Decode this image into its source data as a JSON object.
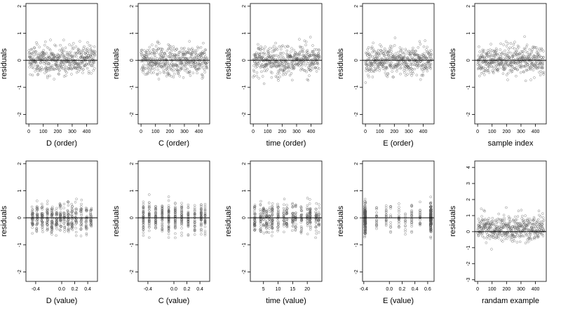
{
  "chart_data": [
    {
      "type": "scatter",
      "xlabel": "D (order)",
      "ylabel": "residuals",
      "xticks": [
        0,
        100,
        200,
        300,
        400
      ],
      "yticks": [
        -2,
        -1,
        0,
        1,
        2
      ],
      "xlim": [
        -20,
        475
      ],
      "ylim": [
        -2.35,
        2.1
      ],
      "ref_line_y": 0,
      "point_pattern": "order",
      "n_points": 460,
      "grid": false
    },
    {
      "type": "scatter",
      "xlabel": "C (order)",
      "ylabel": "residuals",
      "xticks": [
        0,
        100,
        200,
        300,
        400
      ],
      "yticks": [
        -2,
        -1,
        0,
        1,
        2
      ],
      "xlim": [
        -20,
        475
      ],
      "ylim": [
        -2.35,
        2.1
      ],
      "ref_line_y": 0,
      "point_pattern": "order",
      "n_points": 460,
      "grid": false
    },
    {
      "type": "scatter",
      "xlabel": "time (order)",
      "ylabel": "residuals",
      "xticks": [
        0,
        100,
        200,
        300,
        400
      ],
      "yticks": [
        -2,
        -1,
        0,
        1,
        2
      ],
      "xlim": [
        -20,
        475
      ],
      "ylim": [
        -2.35,
        2.1
      ],
      "ref_line_y": 0,
      "point_pattern": "order",
      "n_points": 460,
      "grid": false
    },
    {
      "type": "scatter",
      "xlabel": "E (order)",
      "ylabel": "residuals",
      "xticks": [
        0,
        100,
        200,
        300,
        400
      ],
      "yticks": [
        -2,
        -1,
        0,
        1,
        2
      ],
      "xlim": [
        -20,
        475
      ],
      "ylim": [
        -2.35,
        2.1
      ],
      "ref_line_y": 0,
      "point_pattern": "order",
      "n_points": 460,
      "grid": false
    },
    {
      "type": "scatter",
      "xlabel": "sample index",
      "ylabel": "residuals",
      "xticks": [
        0,
        100,
        200,
        300,
        400
      ],
      "yticks": [
        -2,
        -1,
        0,
        1,
        2
      ],
      "xlim": [
        -20,
        475
      ],
      "ylim": [
        -2.35,
        2.1
      ],
      "ref_line_y": 0,
      "point_pattern": "order",
      "n_points": 460,
      "grid": false
    },
    {
      "type": "scatter",
      "xlabel": "D (value)",
      "ylabel": "residuals",
      "xticks": [
        -0.4,
        0.0,
        0.2,
        0.4
      ],
      "xtick_labels": [
        "-0.4",
        "0.0",
        "0.2",
        "0.4"
      ],
      "yticks": [
        -2,
        -1,
        0,
        1,
        2
      ],
      "xlim": [
        -0.55,
        0.55
      ],
      "ylim": [
        -2.35,
        2.1
      ],
      "ref_line_y": 0,
      "point_pattern": "value_d",
      "n_points": 460,
      "grid": false
    },
    {
      "type": "scatter",
      "xlabel": "C (value)",
      "ylabel": "residuals",
      "xticks": [
        -0.4,
        0.0,
        0.2,
        0.4
      ],
      "xtick_labels": [
        "-0.4",
        "0.0",
        "0.2",
        "0.4"
      ],
      "yticks": [
        -2,
        -1,
        0,
        1,
        2
      ],
      "xlim": [
        -0.55,
        0.55
      ],
      "ylim": [
        -2.35,
        2.1
      ],
      "ref_line_y": 0,
      "point_pattern": "value_c",
      "n_points": 460,
      "grid": false
    },
    {
      "type": "scatter",
      "xlabel": "time (value)",
      "ylabel": "residuals",
      "xticks": [
        5,
        10,
        15,
        20
      ],
      "xtick_labels": [
        "5",
        "10",
        "15",
        "20"
      ],
      "yticks": [
        -2,
        -1,
        0,
        1,
        2
      ],
      "xlim": [
        0.5,
        25
      ],
      "ylim": [
        -2.35,
        2.1
      ],
      "ref_line_y": 0,
      "point_pattern": "value_time",
      "n_points": 460,
      "grid": false
    },
    {
      "type": "scatter",
      "xlabel": "E (value)",
      "ylabel": "residuals",
      "xticks": [
        -0.4,
        0.0,
        0.2,
        0.4,
        0.6
      ],
      "xtick_labels": [
        "-0.4",
        "0.0",
        "0.2",
        "0.4",
        "0.6"
      ],
      "yticks": [
        -2,
        -1,
        0,
        1,
        2
      ],
      "xlim": [
        -0.42,
        0.7
      ],
      "ylim": [
        -2.35,
        2.1
      ],
      "ref_line_y": 0,
      "point_pattern": "value_e",
      "n_points": 460,
      "grid": false
    },
    {
      "type": "scatter",
      "xlabel": "randam example",
      "ylabel": "residuals",
      "xticks": [
        0,
        100,
        200,
        300,
        400
      ],
      "yticks": [
        -3,
        -2,
        -1,
        0,
        1,
        2,
        3,
        4
      ],
      "xlim": [
        -20,
        475
      ],
      "ylim": [
        -3.1,
        4.4
      ],
      "ref_line_y": 0,
      "point_pattern": "random",
      "n_points": 460,
      "grid": false
    }
  ]
}
